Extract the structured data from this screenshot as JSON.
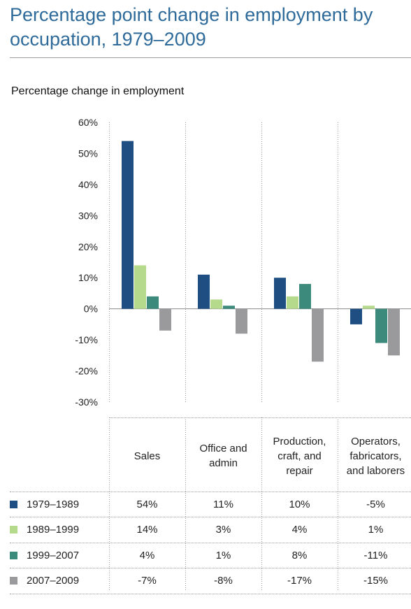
{
  "title": "Percentage point change in employment by occupation, 1979–2009",
  "chart_data": {
    "type": "bar",
    "ylabel": "Percentage change in employment",
    "ylim": [
      -30,
      60
    ],
    "yticks": [
      60,
      50,
      40,
      30,
      20,
      10,
      0,
      -10,
      -20,
      -30
    ],
    "ytick_labels": [
      "60%",
      "50%",
      "40%",
      "30%",
      "20%",
      "10%",
      "0%",
      "-10%",
      "-20%",
      "-30%"
    ],
    "categories": [
      "Sales",
      "Office and admin",
      "Production, craft, and repair",
      "Operators, fabricators, and laborers"
    ],
    "category_lines": [
      [
        "Sales"
      ],
      [
        "Office and",
        "admin"
      ],
      [
        "Production,",
        "craft, and",
        "repair"
      ],
      [
        "Operators,",
        "fabricators,",
        "and laborers"
      ]
    ],
    "series": [
      {
        "name": "1979–1989",
        "color": "#1f4e82",
        "values": [
          54,
          11,
          10,
          -5
        ],
        "labels": [
          "54%",
          "11%",
          "10%",
          "-5%"
        ]
      },
      {
        "name": "1989–1999",
        "color": "#b5da8c",
        "values": [
          14,
          3,
          4,
          1
        ],
        "labels": [
          "14%",
          "3%",
          "4%",
          "1%"
        ]
      },
      {
        "name": "1999–2007",
        "color": "#3b8a7c",
        "values": [
          4,
          1,
          8,
          -11
        ],
        "labels": [
          "4%",
          "1%",
          "8%",
          "-11%"
        ]
      },
      {
        "name": "2007–2009",
        "color": "#9a9a9c",
        "values": [
          -7,
          -8,
          -17,
          -15
        ],
        "labels": [
          "-7%",
          "-8%",
          "-17%",
          "-15%"
        ]
      }
    ],
    "grid": "vertical dotted separators between categories",
    "legend": "table below chart"
  }
}
